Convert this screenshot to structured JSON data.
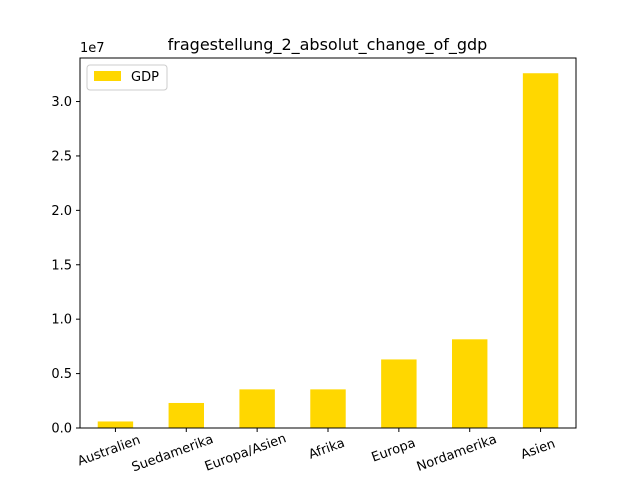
{
  "chart_data": {
    "type": "bar",
    "title": "fragestellung_2_absolut_change_of_gdp",
    "xlabel": "",
    "ylabel": "",
    "y_offset_label": "1e7",
    "categories": [
      "Australien",
      "Suedamerika",
      "Europa/Asien",
      "Afrika",
      "Europa",
      "Nordamerika",
      "Asien"
    ],
    "series": [
      {
        "name": "GDP",
        "values": [
          0.06,
          0.23,
          0.355,
          0.355,
          0.63,
          0.815,
          3.26
        ],
        "color": "#ffd700"
      }
    ],
    "value_scale": 10000000,
    "ylim": [
      0,
      3.4
    ],
    "yticks": [
      0.0,
      0.5,
      1.0,
      1.5,
      2.0,
      2.5,
      3.0
    ],
    "ytick_labels": [
      "0.0",
      "0.5",
      "1.0",
      "1.5",
      "2.0",
      "2.5",
      "3.0"
    ],
    "grid": false,
    "legend_position": "top-left"
  }
}
